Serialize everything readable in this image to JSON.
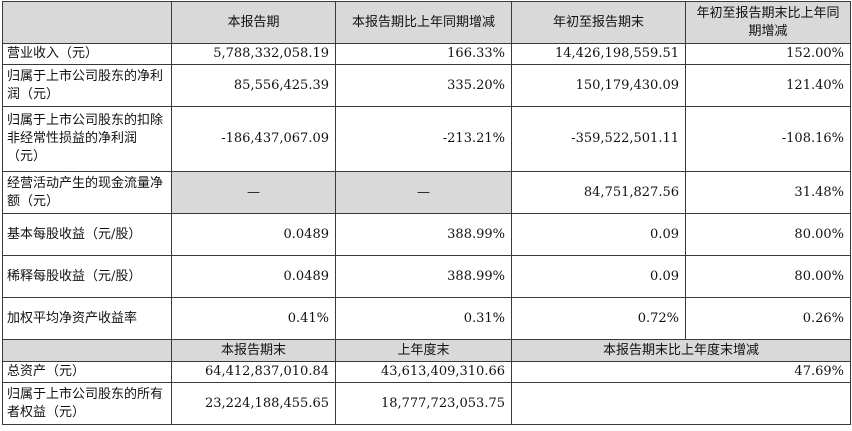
{
  "header": [
    "",
    "本报告期",
    "本报告期比上年同期增减",
    "年初至报告期末",
    "年初至报告期末比上年同期增减"
  ],
  "rows": [
    {
      "label": "营业收入（元）",
      "values": [
        "5,788,332,058.19",
        "166.33%",
        "14,426,198,559.51",
        "152.00%"
      ]
    },
    {
      "label": "归属于上市公司股东的净利润（元）",
      "values": [
        "85,556,425.39",
        "335.20%",
        "150,179,430.09",
        "121.40%"
      ]
    },
    {
      "label": "归属于上市公司股东的扣除非经常性损益的净利润（元）",
      "values": [
        "-186,437,067.09",
        "-213.21%",
        "-359,522,501.11",
        "-108.16%"
      ]
    },
    {
      "label": "经营活动产生的现金流量净额（元）",
      "values": [
        "—",
        "—",
        "84,751,827.56",
        "31.48%"
      ]
    },
    {
      "label": "基本每股收益（元/股）",
      "values": [
        "0.0489",
        "388.99%",
        "0.09",
        "80.00%"
      ]
    },
    {
      "label": "稀释每股收益（元/股）",
      "values": [
        "0.0489",
        "388.99%",
        "0.09",
        "80.00%"
      ]
    },
    {
      "label": "加权平均净资产收益率",
      "values": [
        "0.41%",
        "0.31%",
        "0.72%",
        "0.26%"
      ]
    }
  ],
  "header2": [
    "",
    "本报告期末",
    "上年度末",
    "本报告期末比上年度末增减"
  ],
  "rows2": [
    {
      "label": "总资产（元）",
      "values": [
        "64,412,837,010.84",
        "43,613,409,310.66",
        "47.69%"
      ]
    },
    {
      "label": "归属于上市公司股东的所有者权益（元）",
      "values": [
        "23,224,188,455.65",
        "18,777,723,053.75",
        ""
      ]
    }
  ]
}
